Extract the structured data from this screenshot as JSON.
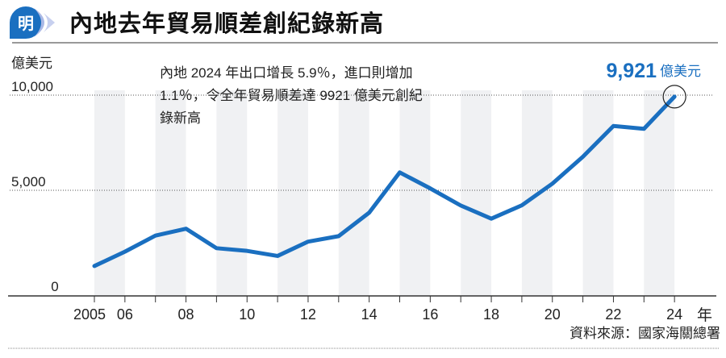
{
  "header": {
    "logo_char": "明",
    "title": "內地去年貿易順差創紀錄新高"
  },
  "annotation": {
    "lines": [
      "內地 2024 年出口增長 5.9％，進口則增加",
      "1.1％，令全年貿易順差達 9921 億美元創紀",
      "錄新高"
    ]
  },
  "highlight": {
    "value": "9,921",
    "unit": "億美元"
  },
  "source": "資料來源：國家海關總署",
  "colors": {
    "line": "#1a6fc0",
    "band": "#f0f1f3",
    "axis": "#333333"
  },
  "chart_data": {
    "type": "line",
    "title": "內地去年貿易順差創紀錄新高",
    "ylabel": "億美元",
    "xlabel": "年",
    "ylim": [
      0,
      10000
    ],
    "yticks": [
      {
        "value": 0,
        "label": "0"
      },
      {
        "value": 5000,
        "label": "5,000"
      },
      {
        "value": 10000,
        "label": "10,000"
      }
    ],
    "xtick_labels": {
      "2005": "2005",
      "2006": "06",
      "2008": "08",
      "2010": "10",
      "2012": "12",
      "2014": "14",
      "2016": "16",
      "2018": "18",
      "2020": "20",
      "2022": "22",
      "2024": "24"
    },
    "x": [
      2005,
      2006,
      2007,
      2008,
      2009,
      2010,
      2011,
      2012,
      2013,
      2014,
      2015,
      2016,
      2017,
      2018,
      2019,
      2020,
      2021,
      2022,
      2023,
      2024
    ],
    "series": [
      {
        "name": "貿易順差",
        "values": [
          1020,
          1775,
          2618,
          2981,
          1957,
          1815,
          1549,
          2303,
          2590,
          3825,
          5939,
          5100,
          4200,
          3509,
          4210,
          5350,
          6764,
          8380,
          8232,
          9921
        ]
      }
    ],
    "grid": true
  }
}
